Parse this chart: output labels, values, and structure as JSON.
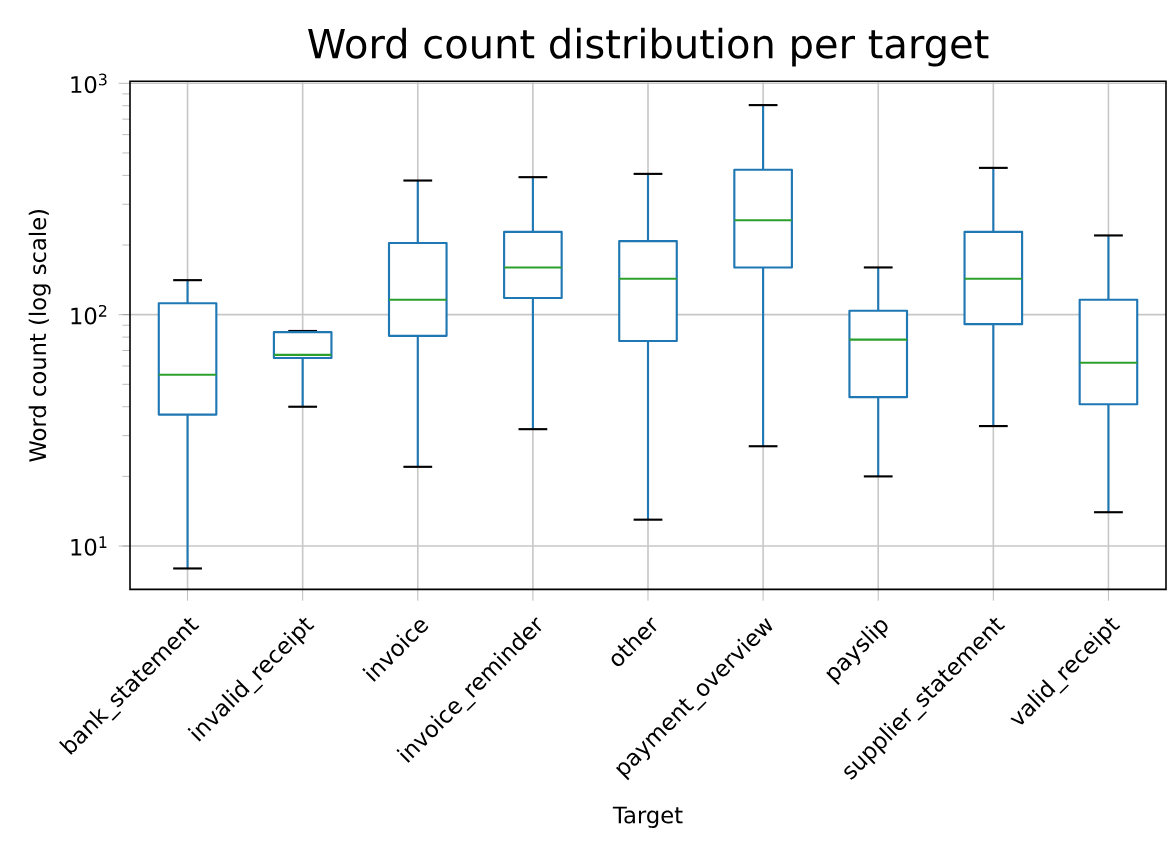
{
  "chart_data": {
    "type": "box",
    "title": "Word count distribution per target",
    "xlabel": "Target",
    "ylabel": "Word count (log scale)",
    "log": "y",
    "grid": true,
    "color": "#1f77b4",
    "categories": [
      "bank_statement",
      "invalid_receipt",
      "invoice",
      "invoice_reminder",
      "other",
      "payment_overview",
      "payslip",
      "supplier_statement",
      "valid_receipt"
    ],
    "ylim": [
      6.5,
      1020
    ],
    "yticks": [
      {
        "value": 10,
        "label": "10$^{1}$"
      },
      {
        "value": 100,
        "label": "10$^{2}$"
      },
      {
        "value": 1000,
        "label": "10$^{3}$"
      }
    ],
    "boxes": [
      {
        "low": 8,
        "q1": 37,
        "median": 55,
        "q3": 112,
        "high": 141
      },
      {
        "low": 40,
        "q1": 65,
        "median": 67,
        "q3": 84,
        "high": 85
      },
      {
        "low": 22,
        "q1": 81,
        "median": 116,
        "q3": 204,
        "high": 380
      },
      {
        "low": 32,
        "q1": 118,
        "median": 160,
        "q3": 228,
        "high": 393
      },
      {
        "low": 13,
        "q1": 77,
        "median": 143,
        "q3": 208,
        "high": 406
      },
      {
        "low": 27,
        "q1": 160,
        "median": 256,
        "q3": 423,
        "high": 805
      },
      {
        "low": 20,
        "q1": 44,
        "median": 78,
        "q3": 104,
        "high": 160
      },
      {
        "low": 33,
        "q1": 91,
        "median": 143,
        "q3": 228,
        "high": 431
      },
      {
        "low": 14,
        "q1": 41,
        "median": 62,
        "q3": 116,
        "high": 220
      }
    ]
  }
}
